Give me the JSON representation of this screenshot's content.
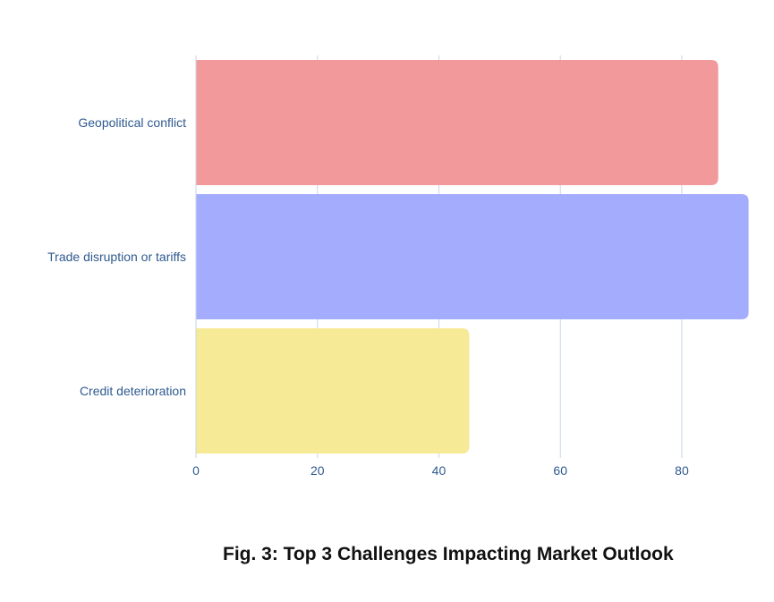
{
  "chart_data": {
    "type": "bar",
    "orientation": "horizontal",
    "categories": [
      "Geopolitical conflict",
      "Trade disruption or tariffs",
      "Credit deterioration"
    ],
    "values": [
      86,
      91,
      45
    ],
    "colors": [
      "#f29a9b",
      "#a4acfe",
      "#f7ea96"
    ],
    "x_ticks": [
      0,
      20,
      40,
      60,
      80
    ],
    "xlim": [
      0,
      91.5
    ],
    "grid": "vertical",
    "legend": "none"
  },
  "caption": "Fig. 3: Top 3 Challenges Impacting Market Outlook"
}
